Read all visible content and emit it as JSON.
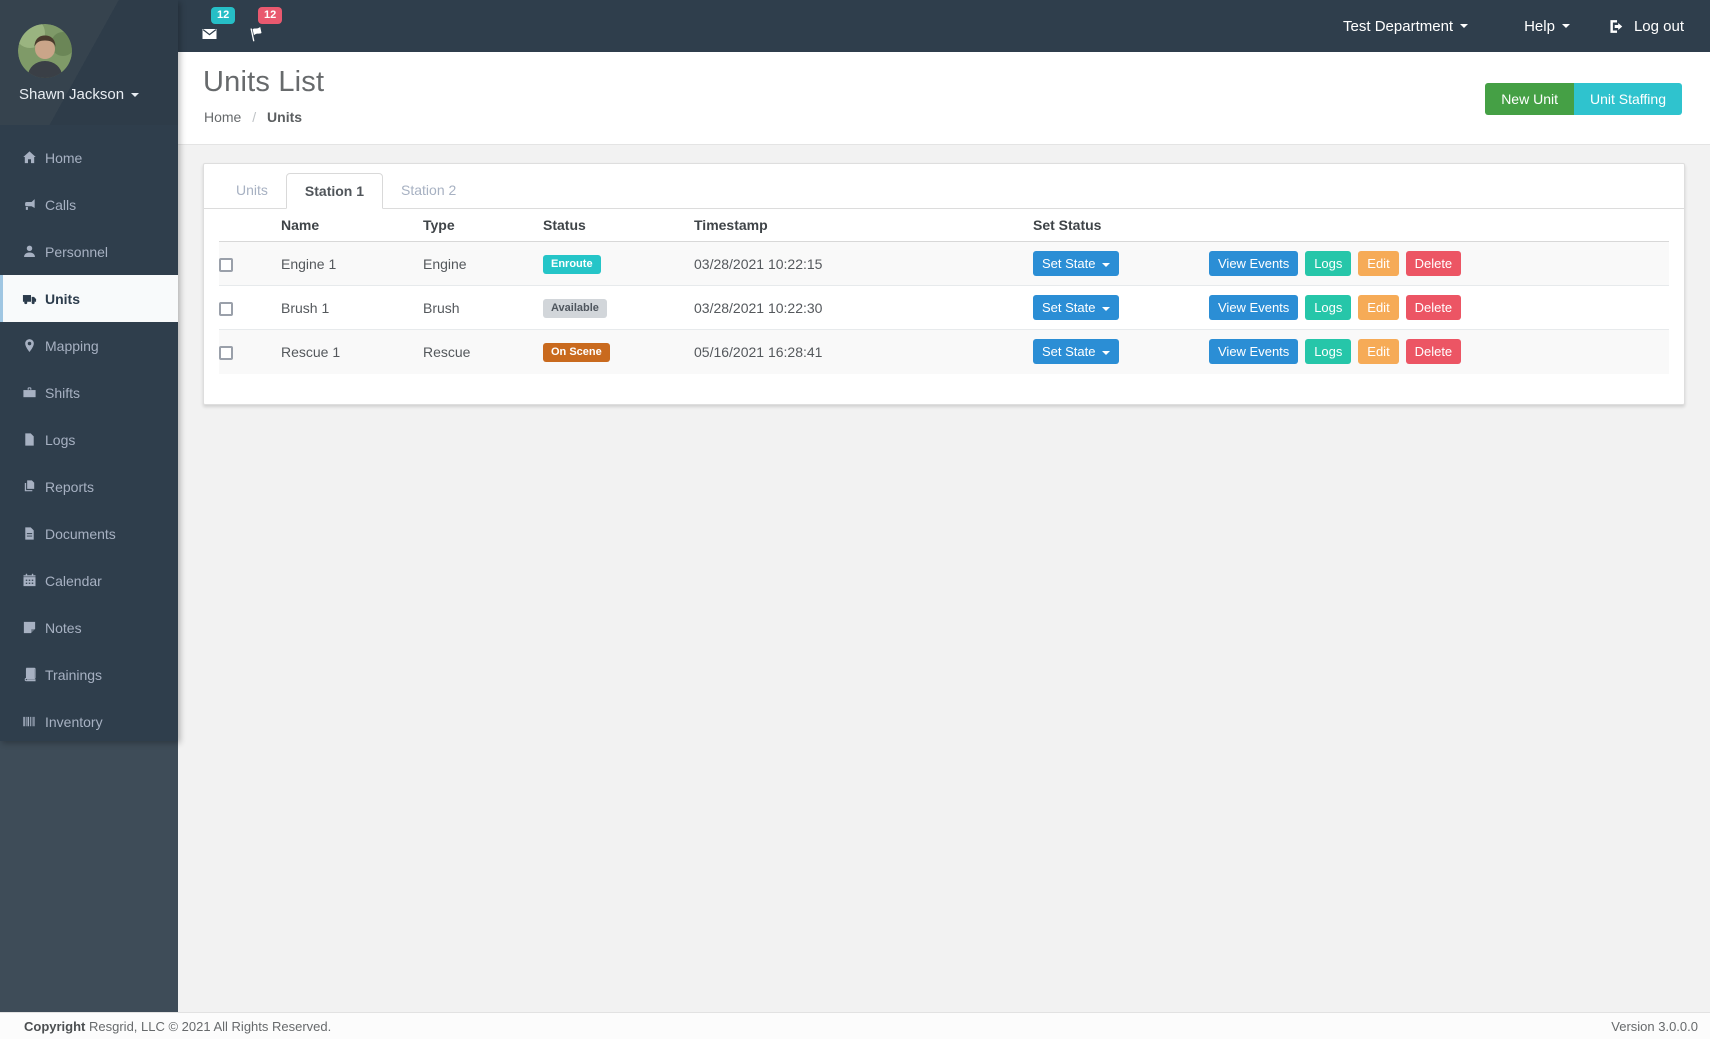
{
  "navbar": {
    "messages_badge": "12",
    "messages_icon": "envelope",
    "notifications_badge": "12",
    "notifications_icon": "flag",
    "department_label": "Test Department",
    "help_label": "Help",
    "logout_label": "Log out",
    "logout_icon": "logout"
  },
  "sidebar": {
    "user_name": "Shawn Jackson",
    "items": [
      {
        "label": "Home",
        "icon": "home"
      },
      {
        "label": "Calls",
        "icon": "bullhorn"
      },
      {
        "label": "Personnel",
        "icon": "user"
      },
      {
        "label": "Units",
        "icon": "truck",
        "active": true
      },
      {
        "label": "Mapping",
        "icon": "map-marker"
      },
      {
        "label": "Shifts",
        "icon": "briefcase"
      },
      {
        "label": "Logs",
        "icon": "file"
      },
      {
        "label": "Reports",
        "icon": "copy"
      },
      {
        "label": "Documents",
        "icon": "file-text"
      },
      {
        "label": "Calendar",
        "icon": "calendar"
      },
      {
        "label": "Notes",
        "icon": "note"
      },
      {
        "label": "Trainings",
        "icon": "book"
      },
      {
        "label": "Inventory",
        "icon": "barcode"
      }
    ]
  },
  "header": {
    "title": "Units List",
    "breadcrumb": [
      "Home",
      "Units"
    ],
    "new_unit_label": "New Unit",
    "unit_staffing_label": "Unit Staffing"
  },
  "tabs": [
    {
      "label": "Units"
    },
    {
      "label": "Station 1",
      "active": true
    },
    {
      "label": "Station 2"
    }
  ],
  "table": {
    "columns": [
      "Name",
      "Type",
      "Status",
      "Timestamp",
      "Set Status"
    ],
    "set_state_label": "Set State",
    "actions": [
      "View Events",
      "Logs",
      "Edit",
      "Delete"
    ],
    "rows": [
      {
        "name": "Engine 1",
        "type": "Engine",
        "status": "Enroute",
        "timestamp": "03/28/2021 10:22:15"
      },
      {
        "name": "Brush 1",
        "type": "Brush",
        "status": "Available",
        "timestamp": "03/28/2021 10:22:30"
      },
      {
        "name": "Rescue 1",
        "type": "Rescue",
        "status": "On Scene",
        "timestamp": "05/16/2021 16:28:41"
      }
    ]
  },
  "footer": {
    "copyright_bold": "Copyright",
    "copyright_rest": " Resgrid, LLC © 2021 All Rights Reserved.",
    "version": "Version 3.0.0.0"
  },
  "colors": {
    "navbar_bg": "#2f3e4c",
    "sidebar_lower_bg": "#3e4c58",
    "accent_blue": "#2b8ed5",
    "button_green": "#45a045",
    "button_cyan": "#2fc3ce",
    "button_teal": "#26c6a9",
    "button_orange": "#f6ab57",
    "button_red": "#ec5564",
    "status_enroute": "#25c5c8",
    "status_available": "#d2d6da",
    "status_onscene": "#c96a1e",
    "messages_badge_bg": "#26bec6",
    "notifications_badge_bg": "#e9596f"
  }
}
